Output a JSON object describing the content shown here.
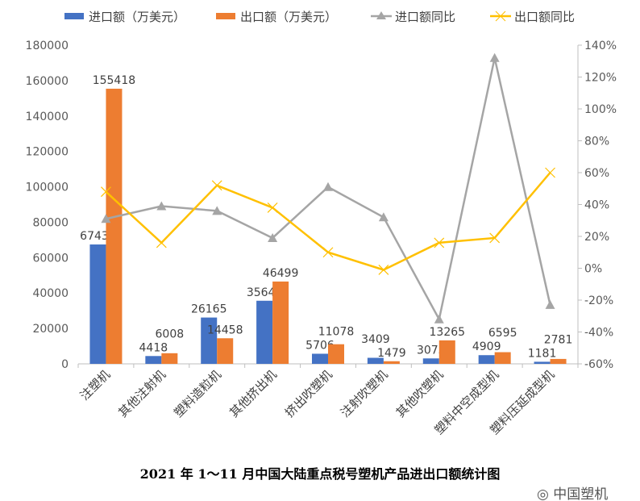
{
  "chart_data": {
    "type": "bar+line",
    "title": "2021 年 1～11 月中国大陆重点税号塑机产品进出口额统计图",
    "categories": [
      "注塑机",
      "其他注射机",
      "塑料造粒机",
      "其他挤出机",
      "挤出吹塑机",
      "注射吹塑机",
      "其他吹塑机",
      "塑料中空成型机",
      "塑料压延成型机"
    ],
    "series": [
      {
        "name": "进口额（万美元）",
        "type": "bar",
        "axis": "left",
        "color": "#4472C4",
        "values": [
          67431,
          4418,
          26165,
          35642,
          5706,
          3409,
          3073,
          4909,
          1181
        ]
      },
      {
        "name": "出口额（万美元）",
        "type": "bar",
        "axis": "right",
        "color": "#ED7D31",
        "values": [
          155418,
          6008,
          14458,
          46499,
          11078,
          1479,
          13265,
          6595,
          2781
        ]
      },
      {
        "name": "进口额同比",
        "type": "line",
        "axis": "right",
        "color": "#A5A5A5",
        "marker": "triangle",
        "values": [
          31,
          39,
          36,
          19,
          51,
          32,
          -32,
          132,
          -23
        ]
      },
      {
        "name": "出口额同比",
        "type": "line",
        "axis": "right",
        "color": "#FFC000",
        "marker": "x",
        "values": [
          48,
          16,
          52,
          38,
          10,
          -1,
          16,
          19,
          60
        ]
      }
    ],
    "left_axis": {
      "min": 0,
      "max": 180000,
      "step": 20000,
      "ticks": [
        "0",
        "20000",
        "40000",
        "60000",
        "80000",
        "100000",
        "120000",
        "140000",
        "160000",
        "180000"
      ]
    },
    "right_axis": {
      "min": -60,
      "max": 140,
      "step": 20,
      "unit": "%",
      "ticks": [
        "-60%",
        "-40%",
        "-20%",
        "0%",
        "20%",
        "40%",
        "60%",
        "80%",
        "100%",
        "120%",
        "140%"
      ]
    },
    "legend": "top",
    "grid": false
  },
  "watermark": "中国塑机"
}
